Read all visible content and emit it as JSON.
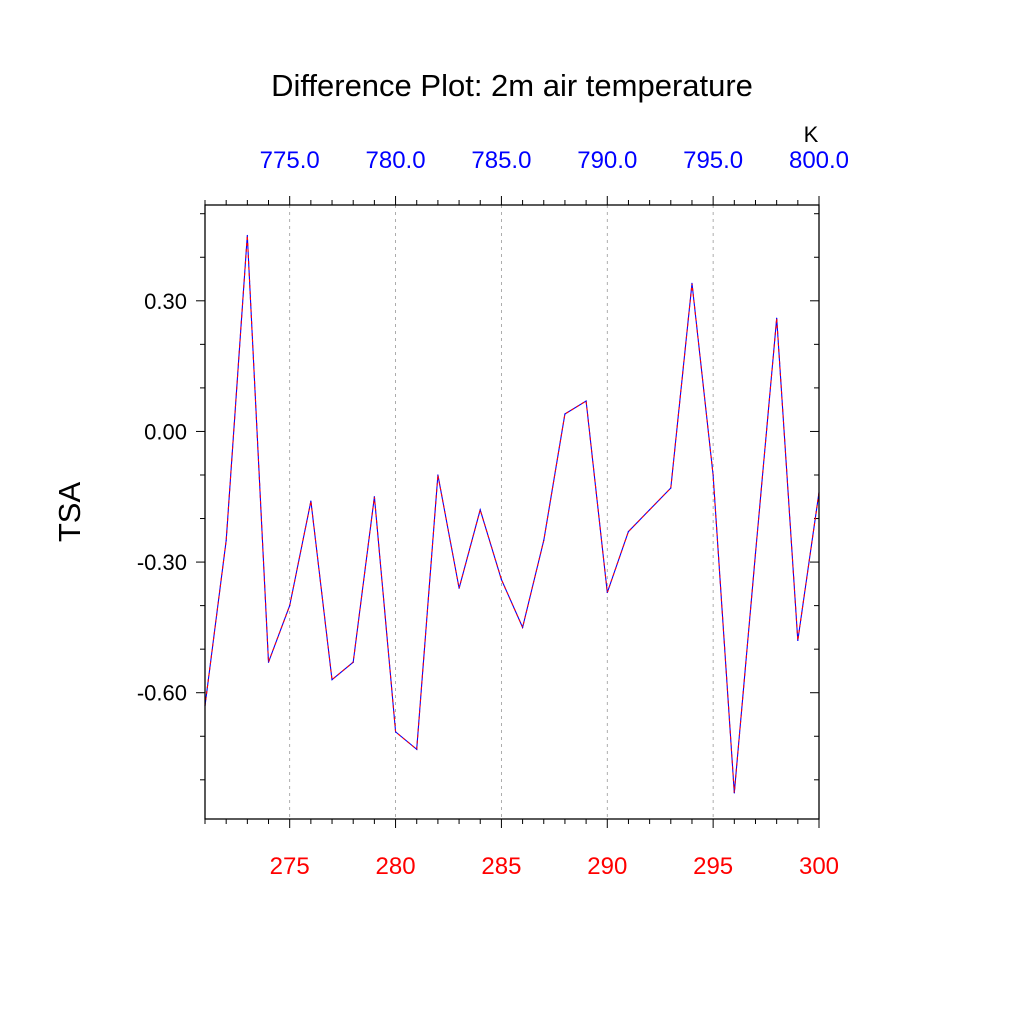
{
  "chart_data": {
    "type": "line",
    "title": "Difference Plot: 2m air temperature",
    "ylabel": "TSA",
    "xlim": [
      271,
      300
    ],
    "ylim": [
      -0.89,
      0.52
    ],
    "x_ticks_bottom": [
      275,
      280,
      285,
      290,
      295,
      300
    ],
    "x_tick_labels_bottom": [
      "275",
      "280",
      "285",
      "290",
      "295",
      "300"
    ],
    "x_ticks_top_labels": [
      "775.0",
      "780.0",
      "785.0",
      "790.0",
      "795.0",
      "800.0"
    ],
    "x_top_unit": "K",
    "y_ticks": [
      -0.6,
      -0.3,
      0.0,
      0.3
    ],
    "y_tick_labels": [
      "-0.60",
      "-0.30",
      "0.00",
      "0.30"
    ],
    "grid": "vertical-dashed",
    "series": [
      {
        "color_solid": "#0000ff",
        "color_dash": "#ff0000",
        "x": [
          271,
          272,
          273,
          274,
          275,
          276,
          277,
          278,
          279,
          280,
          281,
          282,
          283,
          284,
          285,
          286,
          287,
          288,
          289,
          290,
          291,
          292,
          293,
          294,
          295,
          296,
          297,
          298,
          299,
          300
        ],
        "y": [
          -0.63,
          -0.25,
          0.45,
          -0.53,
          -0.4,
          -0.16,
          -0.57,
          -0.53,
          -0.15,
          -0.69,
          -0.73,
          -0.1,
          -0.36,
          -0.18,
          -0.34,
          -0.45,
          -0.25,
          0.04,
          0.07,
          -0.37,
          -0.23,
          -0.18,
          -0.13,
          0.34,
          -0.1,
          -0.83,
          -0.28,
          0.26,
          -0.48,
          -0.14
        ]
      }
    ]
  }
}
